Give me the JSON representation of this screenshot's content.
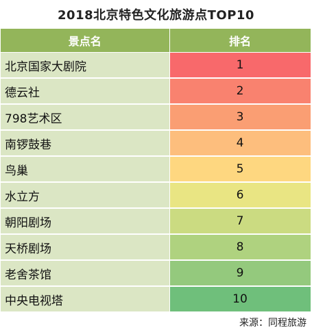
{
  "chart_data": {
    "type": "table",
    "title": "2018北京特色文化旅游点TOP10",
    "columns": [
      "景点名",
      "排名"
    ],
    "rows": [
      {
        "name": "北京国家大剧院",
        "rank": "1"
      },
      {
        "name": "德云社",
        "rank": "2"
      },
      {
        "name": "798艺术区",
        "rank": "3"
      },
      {
        "name": "南锣鼓巷",
        "rank": "4"
      },
      {
        "name": "鸟巢",
        "rank": "5"
      },
      {
        "name": "水立方",
        "rank": "6"
      },
      {
        "name": "朝阳剧场",
        "rank": "7"
      },
      {
        "name": "天桥剧场",
        "rank": "8"
      },
      {
        "name": "老舍茶馆",
        "rank": "9"
      },
      {
        "name": "中央电视塔",
        "rank": "10"
      }
    ],
    "header_color": "#93b55a",
    "name_cell_color": "#dbe6c4",
    "rank_colors": [
      "#f8696b",
      "#f9826f",
      "#fa9e73",
      "#fdbe7d",
      "#fed780",
      "#e9e583",
      "#cbdb81",
      "#afd27f",
      "#94c97d",
      "#6fbf7b"
    ],
    "source": "来源：同程旅游"
  }
}
